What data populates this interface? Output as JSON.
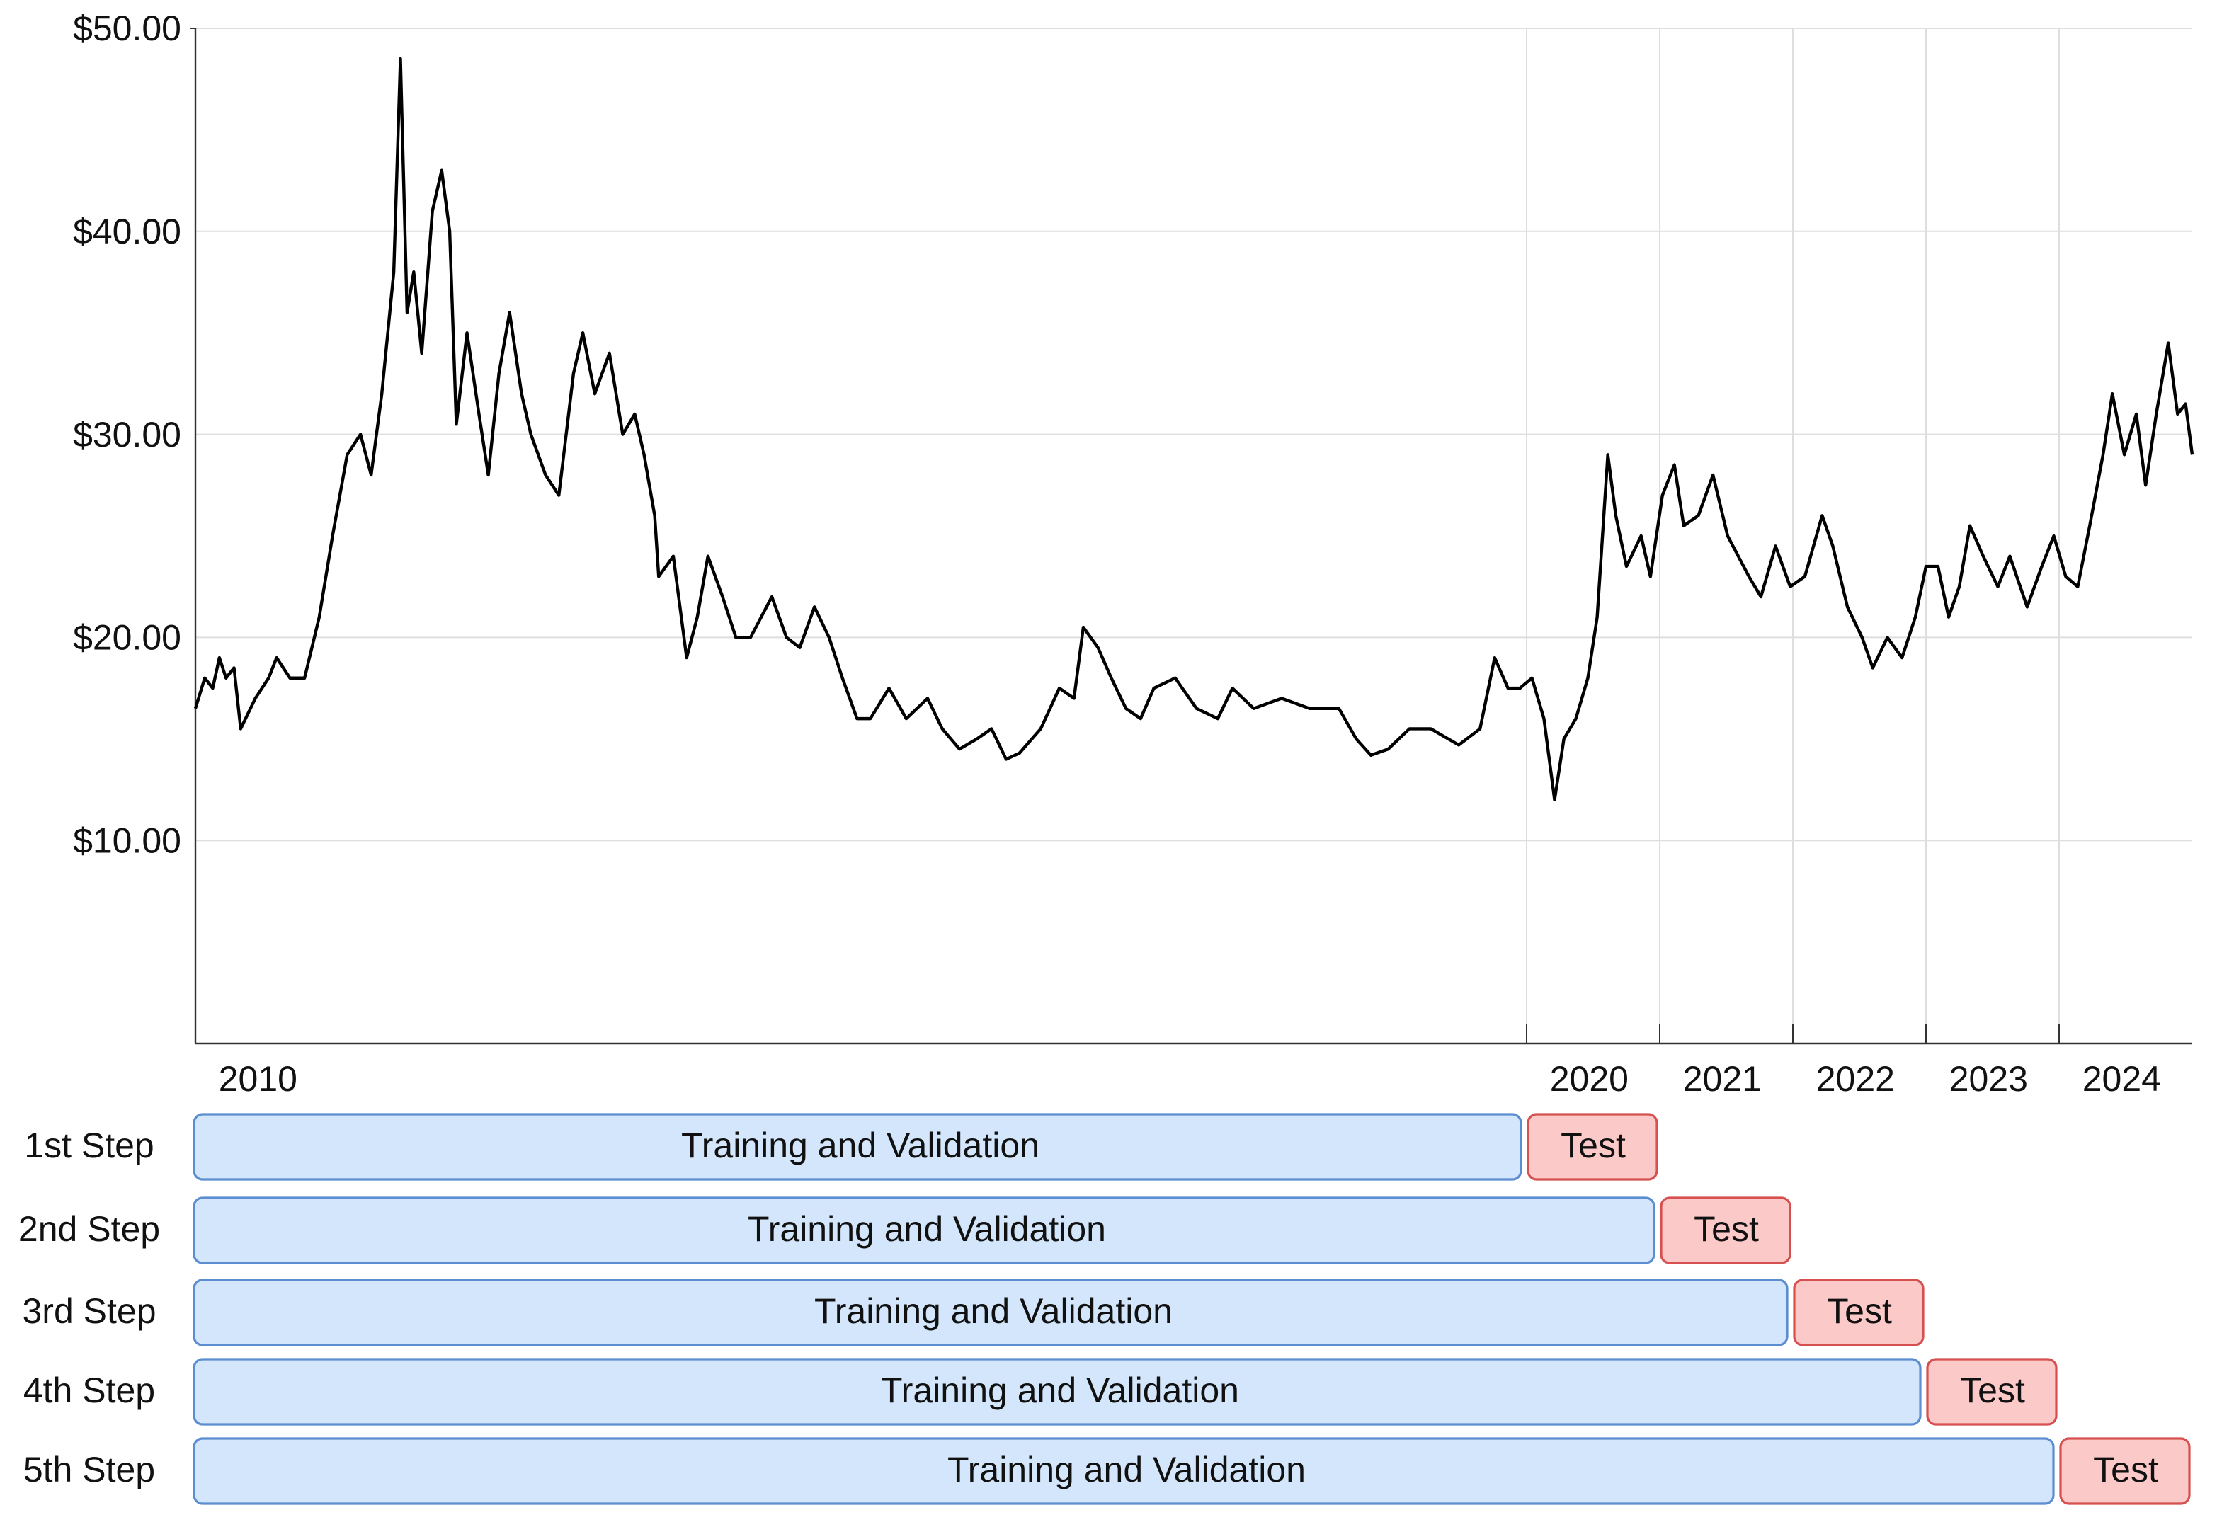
{
  "chart_data": {
    "type": "line",
    "x": [
      2010.0,
      2010.07,
      2010.13,
      2010.18,
      2010.23,
      2010.29,
      2010.34,
      2010.45,
      2010.55,
      2010.61,
      2010.71,
      2010.82,
      2010.93,
      2011.03,
      2011.14,
      2011.24,
      2011.32,
      2011.4,
      2011.49,
      2011.54,
      2011.59,
      2011.64,
      2011.7,
      2011.78,
      2011.85,
      2011.91,
      2011.96,
      2012.04,
      2012.13,
      2012.2,
      2012.28,
      2012.36,
      2012.45,
      2012.52,
      2012.63,
      2012.73,
      2012.84,
      2012.91,
      2013.0,
      2013.11,
      2013.21,
      2013.3,
      2013.37,
      2013.45,
      2013.48,
      2013.59,
      2013.69,
      2013.77,
      2013.85,
      2013.96,
      2014.06,
      2014.17,
      2014.33,
      2014.44,
      2014.54,
      2014.65,
      2014.76,
      2014.86,
      2014.97,
      2015.07,
      2015.21,
      2015.34,
      2015.5,
      2015.61,
      2015.74,
      2015.87,
      2015.98,
      2016.09,
      2016.19,
      2016.35,
      2016.49,
      2016.6,
      2016.67,
      2016.78,
      2016.88,
      2016.99,
      2017.1,
      2017.2,
      2017.36,
      2017.52,
      2017.68,
      2017.79,
      2017.95,
      2018.16,
      2018.37,
      2018.59,
      2018.72,
      2018.83,
      2018.96,
      2019.12,
      2019.28,
      2019.49,
      2019.65,
      2019.76,
      2019.86,
      2019.95,
      2020.04,
      2020.13,
      2020.21,
      2020.28,
      2020.37,
      2020.46,
      2020.53,
      2020.61,
      2020.67,
      2020.75,
      2020.86,
      2020.93,
      2021.02,
      2021.11,
      2021.18,
      2021.29,
      2021.4,
      2021.51,
      2021.67,
      2021.76,
      2021.87,
      2021.98,
      2022.09,
      2022.22,
      2022.3,
      2022.41,
      2022.52,
      2022.6,
      2022.71,
      2022.82,
      2022.92,
      2023.0,
      2023.09,
      2023.17,
      2023.25,
      2023.33,
      2023.43,
      2023.54,
      2023.63,
      2023.76,
      2023.87,
      2023.96,
      2024.05,
      2024.14,
      2024.23,
      2024.33,
      2024.4,
      2024.49,
      2024.58,
      2024.65,
      2024.73,
      2024.82,
      2024.89,
      2024.95,
      2025.0
    ],
    "series": [
      {
        "color": "#000000",
        "values": [
          16.5,
          18,
          17.5,
          19,
          18,
          18.5,
          15.5,
          17,
          18,
          19,
          18,
          18,
          21,
          25,
          29,
          30,
          28,
          32,
          38,
          48.5,
          36,
          38,
          34,
          41,
          43,
          40,
          30.5,
          35,
          31,
          28,
          33,
          36,
          32,
          30,
          28,
          27,
          33,
          35,
          32,
          34,
          30,
          31,
          29,
          26,
          23,
          24,
          19,
          21,
          24,
          22,
          20,
          20,
          22,
          20,
          19.5,
          21.5,
          20,
          18,
          16,
          16,
          17.5,
          16,
          17,
          15.5,
          14.5,
          15,
          15.5,
          14,
          14.3,
          15.5,
          17.5,
          17,
          20.5,
          19.5,
          18,
          16.5,
          16,
          17.5,
          18,
          16.5,
          16,
          17.5,
          16.5,
          17,
          16.5,
          16.5,
          15,
          14.2,
          14.5,
          15.5,
          15.5,
          14.7,
          15.5,
          19,
          17.5,
          17.5,
          18,
          16,
          12,
          15,
          16,
          18,
          21,
          29,
          26,
          23.5,
          25,
          23,
          27,
          28.5,
          25.5,
          26,
          28,
          25,
          23,
          22,
          24.5,
          22.5,
          23,
          26,
          24.5,
          21.5,
          20,
          18.5,
          20,
          19,
          21,
          23.5,
          23.5,
          21,
          22.5,
          25.5,
          24,
          22.5,
          24,
          21.5,
          23.5,
          25,
          23,
          22.5,
          25.5,
          29,
          32,
          29,
          31,
          27.5,
          31,
          34.5,
          31,
          31.5,
          29
        ]
      }
    ],
    "xlim": [
      2010,
      2025
    ],
    "xticks": [
      2010,
      2020,
      2021,
      2022,
      2023,
      2024
    ],
    "ylim": [
      0,
      50
    ],
    "yticks": [
      {
        "value": 10,
        "label": "$10.00"
      },
      {
        "value": 20,
        "label": "$20.00"
      },
      {
        "value": 30,
        "label": "$30.00"
      },
      {
        "value": 40,
        "label": "$40.00"
      },
      {
        "value": 50,
        "label": "$50.00"
      }
    ],
    "grid": true
  },
  "steps": [
    {
      "label": "1st Step",
      "train": "Training and Validation",
      "test": "Test",
      "start": 2010,
      "split": 2020,
      "end": 2021
    },
    {
      "label": "2nd Step",
      "train": "Training and Validation",
      "test": "Test",
      "start": 2010,
      "split": 2021,
      "end": 2022
    },
    {
      "label": "3rd Step",
      "train": "Training and Validation",
      "test": "Test",
      "start": 2010,
      "split": 2022,
      "end": 2023
    },
    {
      "label": "4th Step",
      "train": "Training and Validation",
      "test": "Test",
      "start": 2010,
      "split": 2023,
      "end": 2024
    },
    {
      "label": "5th Step",
      "train": "Training and Validation",
      "test": "Test",
      "start": 2010,
      "split": 2024,
      "end": 2025
    }
  ]
}
